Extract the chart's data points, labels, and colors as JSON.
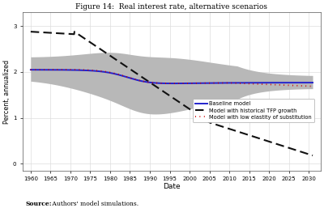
{
  "title": "Figure 14:  Real interest rate, alternative scenarios",
  "xlabel": "Date",
  "ylabel": "Percent, annualized",
  "source_label": "Source:",
  "source_rest": "  Authors' model simulations.",
  "xlim": [
    1958,
    2033
  ],
  "ylim": [
    -0.15,
    3.3
  ],
  "yticks": [
    0,
    1,
    2,
    3
  ],
  "xticks": [
    1960,
    1965,
    1970,
    1975,
    1980,
    1985,
    1990,
    1995,
    2000,
    2005,
    2010,
    2015,
    2020,
    2025,
    2030
  ],
  "baseline_color": "#2222cc",
  "tfp_color": "#111111",
  "low_elast_color": "#cc0000",
  "shade_color": "#b8b8b8",
  "background_color": "#ffffff",
  "grid_color": "#dddddd"
}
